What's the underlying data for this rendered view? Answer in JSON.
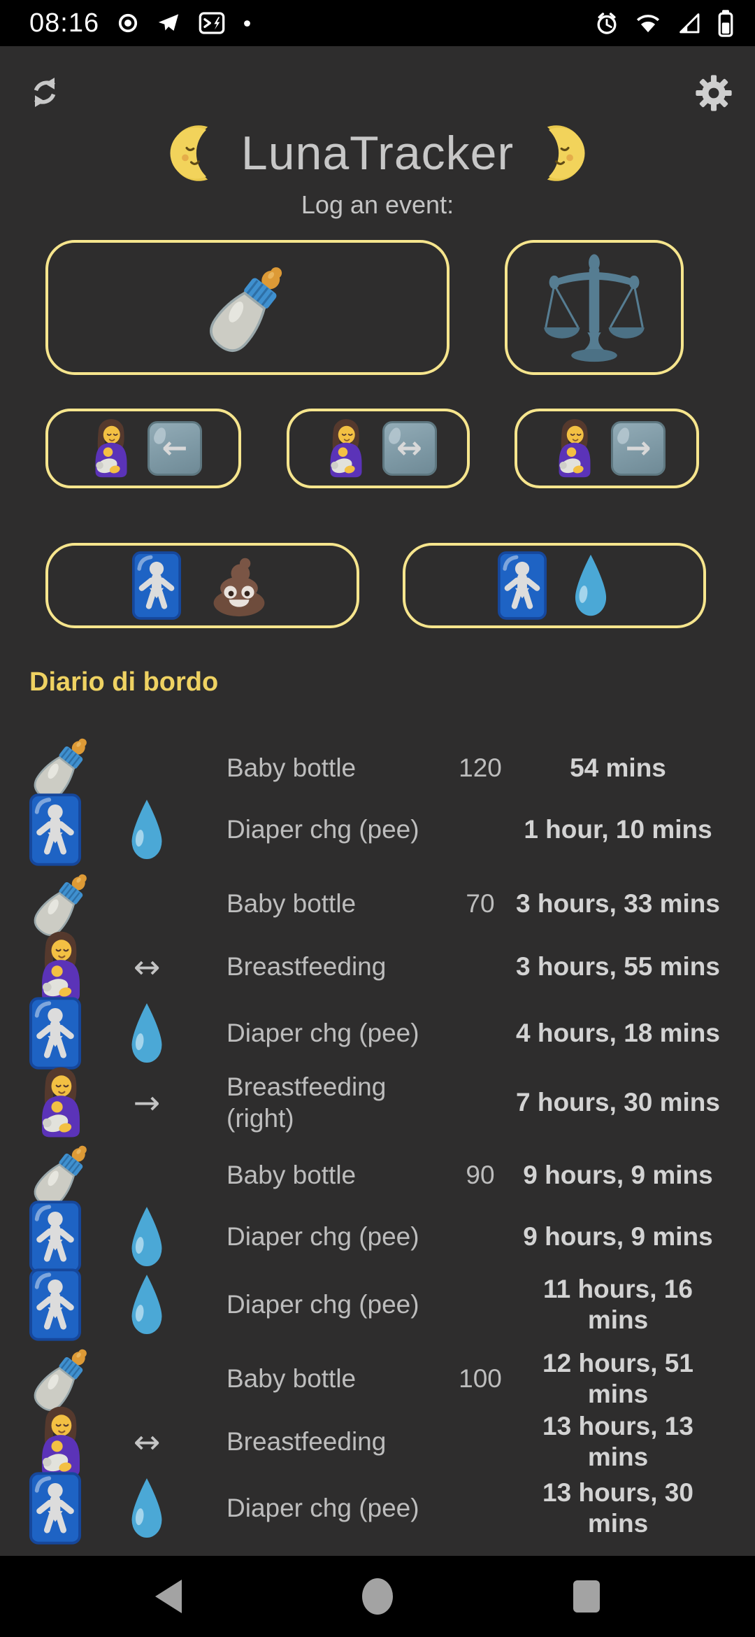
{
  "status_bar": {
    "time": "08:16",
    "left_icons": [
      "record-icon",
      "telegram-icon",
      "terminal-icon",
      "notification-dot"
    ],
    "right_icons": [
      "alarm-icon",
      "wifi-icon",
      "cell-signal-icon",
      "battery-icon"
    ]
  },
  "header": {
    "title": "LunaTracker",
    "subtitle": "Log an event:",
    "moon_left": "moon-face-left",
    "moon_right": "moon-face-right",
    "refresh": "refresh-icon",
    "settings": "gear-icon"
  },
  "event_buttons": {
    "row1": [
      {
        "id": "baby-bottle",
        "icon": "baby-bottle"
      },
      {
        "id": "weigh",
        "icon": "balance-scale"
      }
    ],
    "row2": [
      {
        "id": "breastfeed-left",
        "icon": "breastfeeding",
        "arrow": "←"
      },
      {
        "id": "breastfeed-both",
        "icon": "breastfeeding",
        "arrow": "↔"
      },
      {
        "id": "breastfeed-right",
        "icon": "breastfeeding",
        "arrow": "→"
      }
    ],
    "row3": [
      {
        "id": "diaper-poo",
        "icons": [
          "baby-symbol",
          "poop"
        ]
      },
      {
        "id": "diaper-pee",
        "icons": [
          "baby-symbol",
          "droplet"
        ]
      }
    ]
  },
  "journal": {
    "heading": "Diario di bordo",
    "entries": [
      {
        "icon": "baby-bottle",
        "icon2": "",
        "arrow": "",
        "label": "Baby bottle",
        "value": "120",
        "elapsed": "54 mins"
      },
      {
        "icon": "baby-symbol",
        "icon2": "droplet",
        "arrow": "",
        "label": "Diaper chg (pee)",
        "value": "",
        "elapsed": "1 hour, 10 mins"
      },
      {
        "icon": "baby-bottle",
        "icon2": "",
        "arrow": "",
        "label": "Baby bottle",
        "value": "70",
        "elapsed": "3 hours, 33 mins"
      },
      {
        "icon": "breastfeeding",
        "icon2": "",
        "arrow": "↔",
        "label": "Breastfeeding",
        "value": "",
        "elapsed": "3 hours, 55 mins"
      },
      {
        "icon": "baby-symbol",
        "icon2": "droplet",
        "arrow": "",
        "label": "Diaper chg (pee)",
        "value": "",
        "elapsed": "4 hours, 18 mins"
      },
      {
        "icon": "breastfeeding",
        "icon2": "",
        "arrow": "→",
        "label": "Breastfeeding (right)",
        "value": "",
        "elapsed": "7 hours, 30 mins"
      },
      {
        "icon": "baby-bottle",
        "icon2": "",
        "arrow": "",
        "label": "Baby bottle",
        "value": "90",
        "elapsed": "9 hours, 9 mins"
      },
      {
        "icon": "baby-symbol",
        "icon2": "droplet",
        "arrow": "",
        "label": "Diaper chg (pee)",
        "value": "",
        "elapsed": "9 hours, 9 mins"
      },
      {
        "icon": "baby-symbol",
        "icon2": "droplet",
        "arrow": "",
        "label": "Diaper chg (pee)",
        "value": "",
        "elapsed": "11 hours, 16 mins"
      },
      {
        "icon": "baby-bottle",
        "icon2": "",
        "arrow": "",
        "label": "Baby bottle",
        "value": "100",
        "elapsed": "12 hours, 51 mins"
      },
      {
        "icon": "breastfeeding",
        "icon2": "",
        "arrow": "↔",
        "label": "Breastfeeding",
        "value": "",
        "elapsed": "13 hours, 13 mins"
      },
      {
        "icon": "baby-symbol",
        "icon2": "droplet",
        "arrow": "",
        "label": "Diaper chg (pee)",
        "value": "",
        "elapsed": "13 hours, 30 mins"
      }
    ]
  },
  "nav_bar": {
    "icons": [
      "back-icon",
      "home-icon",
      "recents-icon"
    ]
  },
  "colors": {
    "background": "#2e2d2d",
    "bar": "#000000",
    "button_border": "#f6e58d",
    "heading": "#efd262",
    "text": "#bdbdbd",
    "elapsed_text": "#d3d3d3",
    "title_text": "#c7c7c7",
    "baby_sign_blue": "#1e63c4",
    "droplet_blue": "#4ba8d6"
  }
}
